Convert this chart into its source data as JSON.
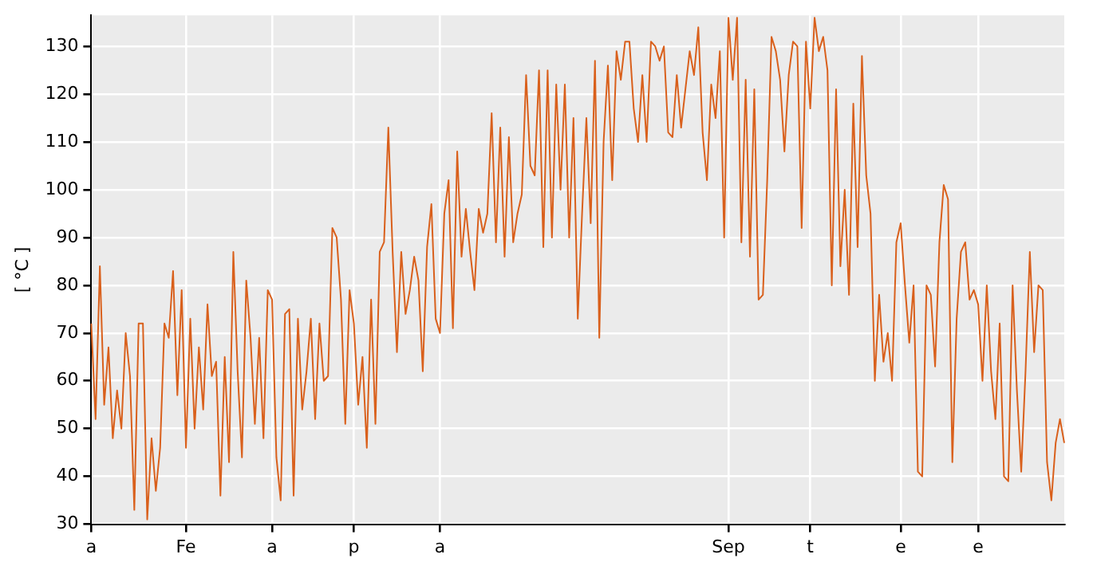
{
  "chart_data": {
    "type": "line",
    "ylabel": "[ °C ]",
    "categories": [
      "a",
      null,
      null,
      null,
      null,
      null,
      null,
      null,
      null,
      null,
      null,
      null,
      null,
      null,
      null,
      null,
      null,
      null,
      null,
      null,
      null,
      null,
      "Fe",
      null,
      null,
      null,
      null,
      null,
      null,
      null,
      null,
      null,
      null,
      null,
      null,
      null,
      null,
      null,
      null,
      null,
      null,
      null,
      "a",
      null,
      null,
      null,
      null,
      null,
      null,
      null,
      null,
      null,
      null,
      null,
      null,
      null,
      null,
      null,
      null,
      null,
      null,
      "p",
      null,
      null,
      null,
      null,
      null,
      null,
      null,
      null,
      null,
      null,
      null,
      null,
      null,
      null,
      null,
      null,
      null,
      null,
      null,
      "a",
      null,
      null,
      null,
      null,
      null,
      null,
      null,
      null,
      null,
      null,
      null,
      null,
      null,
      null,
      null,
      null,
      null,
      null,
      null,
      null,
      null,
      null,
      null,
      null,
      null,
      null,
      null,
      null,
      null,
      null,
      null,
      null,
      null,
      null,
      null,
      null,
      null,
      null,
      null,
      null,
      null,
      null,
      null,
      null,
      null,
      null,
      null,
      null,
      null,
      null,
      null,
      null,
      null,
      null,
      null,
      null,
      null,
      null,
      null,
      null,
      null,
      null,
      null,
      null,
      null,
      null,
      "Sep",
      null,
      null,
      null,
      null,
      null,
      null,
      null,
      null,
      null,
      null,
      null,
      null,
      null,
      null,
      null,
      null,
      null,
      null,
      "t",
      null,
      null,
      null,
      null,
      null,
      null,
      null,
      null,
      null,
      null,
      null,
      null,
      null,
      null,
      null,
      null,
      null,
      null,
      null,
      null,
      "e",
      null,
      null,
      null,
      null,
      null,
      null,
      null,
      null,
      null,
      null,
      null,
      null,
      null,
      null,
      null,
      null,
      null,
      "e",
      null,
      null,
      null,
      null,
      null,
      null,
      null,
      null,
      null,
      null,
      null,
      null,
      null,
      null,
      null,
      null,
      null,
      null,
      null,
      null
    ],
    "series": [
      {
        "color": "#d9601c",
        "values": [
          72,
          52,
          84,
          55,
          67,
          48,
          58,
          50,
          70,
          61,
          33,
          72,
          72,
          31,
          48,
          37,
          46,
          72,
          69,
          83,
          57,
          79,
          46,
          73,
          50,
          67,
          54,
          76,
          61,
          64,
          36,
          65,
          43,
          87,
          62,
          44,
          81,
          69,
          51,
          69,
          48,
          79,
          77,
          44,
          35,
          74,
          75,
          36,
          73,
          54,
          62,
          73,
          52,
          72,
          60,
          61,
          92,
          90,
          77,
          51,
          79,
          72,
          55,
          65,
          46,
          77,
          51,
          87,
          89,
          113,
          87,
          66,
          87,
          74,
          79,
          86,
          81,
          62,
          88,
          97,
          73,
          70,
          95,
          102,
          71,
          108,
          86,
          96,
          87,
          79,
          96,
          91,
          95,
          116,
          89,
          113,
          86,
          111,
          89,
          95,
          99,
          124,
          105,
          103,
          125,
          88,
          125,
          90,
          122,
          100,
          122,
          90,
          115,
          73,
          95,
          115,
          93,
          127,
          69,
          110,
          126,
          102,
          129,
          123,
          131,
          131,
          117,
          110,
          124,
          110,
          131,
          130,
          127,
          130,
          112,
          111,
          124,
          113,
          121,
          129,
          124,
          134,
          112,
          102,
          122,
          115,
          129,
          90,
          136,
          123,
          136,
          89,
          123,
          86,
          121,
          77,
          78,
          102,
          132,
          129,
          123,
          108,
          124,
          131,
          130,
          92,
          131,
          117,
          136,
          129,
          132,
          125,
          80,
          121,
          84,
          100,
          78,
          118,
          88,
          128,
          103,
          95,
          60,
          78,
          64,
          70,
          60,
          89,
          93,
          80,
          68,
          80,
          41,
          40,
          80,
          78,
          63,
          89,
          101,
          98,
          43,
          73,
          87,
          89,
          77,
          79,
          76,
          60,
          80,
          62,
          52,
          72,
          40,
          39,
          80,
          58,
          41,
          62,
          87,
          66,
          80,
          79,
          43,
          35,
          47,
          52,
          47
        ]
      }
    ],
    "ylim": [
      30,
      136.5
    ],
    "yticks": [
      30,
      40,
      50,
      60,
      70,
      80,
      90,
      100,
      110,
      120,
      130
    ],
    "grid": true,
    "marker": "none",
    "line_style": "solid"
  }
}
